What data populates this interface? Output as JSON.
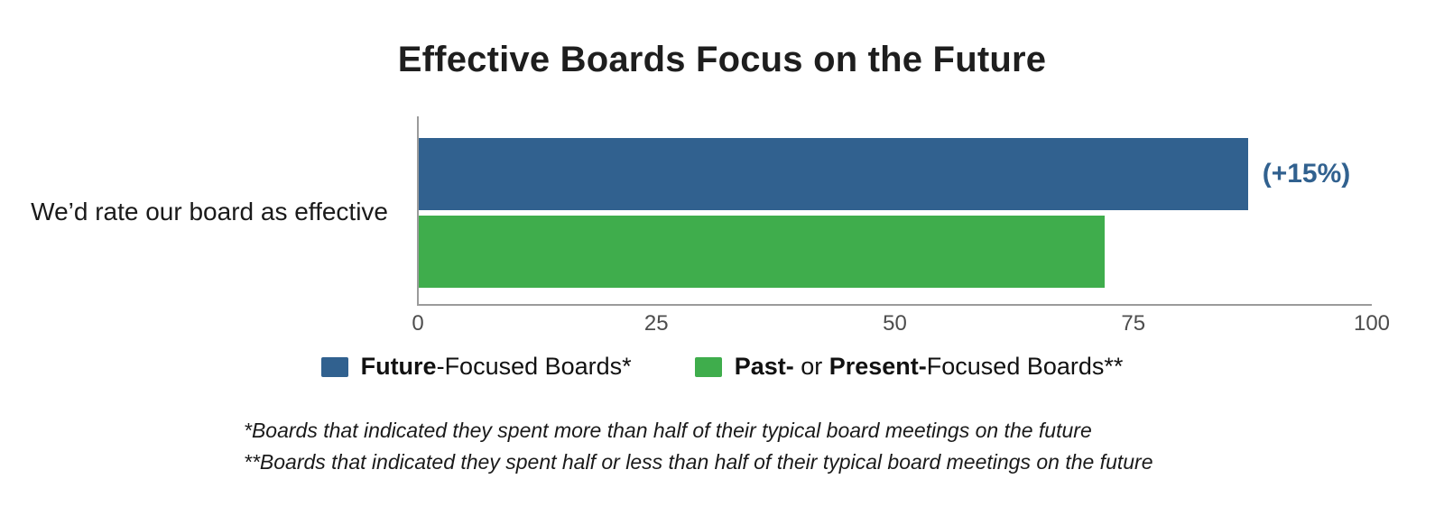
{
  "title": "Effective Boards Focus on the Future",
  "chart_data": {
    "type": "bar",
    "orientation": "horizontal",
    "title": "Effective Boards Focus on the Future",
    "categories": [
      "We’d rate our board as effective"
    ],
    "series": [
      {
        "name": "Future-Focused Boards*",
        "values": [
          87
        ],
        "color": "#31618F"
      },
      {
        "name": "Past- or Present-Focused Boards**",
        "values": [
          72
        ],
        "color": "#3FAD4C"
      }
    ],
    "annotation": {
      "text": "(+15%)",
      "color": "#31618F",
      "attached_to_series": "Future-Focused Boards*"
    },
    "xlim": [
      0,
      100
    ],
    "x_ticks": [
      0,
      25,
      50,
      75,
      100
    ],
    "xlabel": "",
    "ylabel": "",
    "grid": false,
    "legend_position": "bottom"
  },
  "legend": {
    "future": {
      "bold": "Future",
      "rest": "-Focused Boards*"
    },
    "past": {
      "bold1": "Past-",
      "mid": " or ",
      "bold2": "Present-",
      "rest": "Focused Boards**"
    }
  },
  "footnotes": [
    "*Boards that indicated they spent more than half of their typical board meetings on the future",
    "**Boards that indicated they spent half or less than half of their typical board meetings on the future"
  ]
}
